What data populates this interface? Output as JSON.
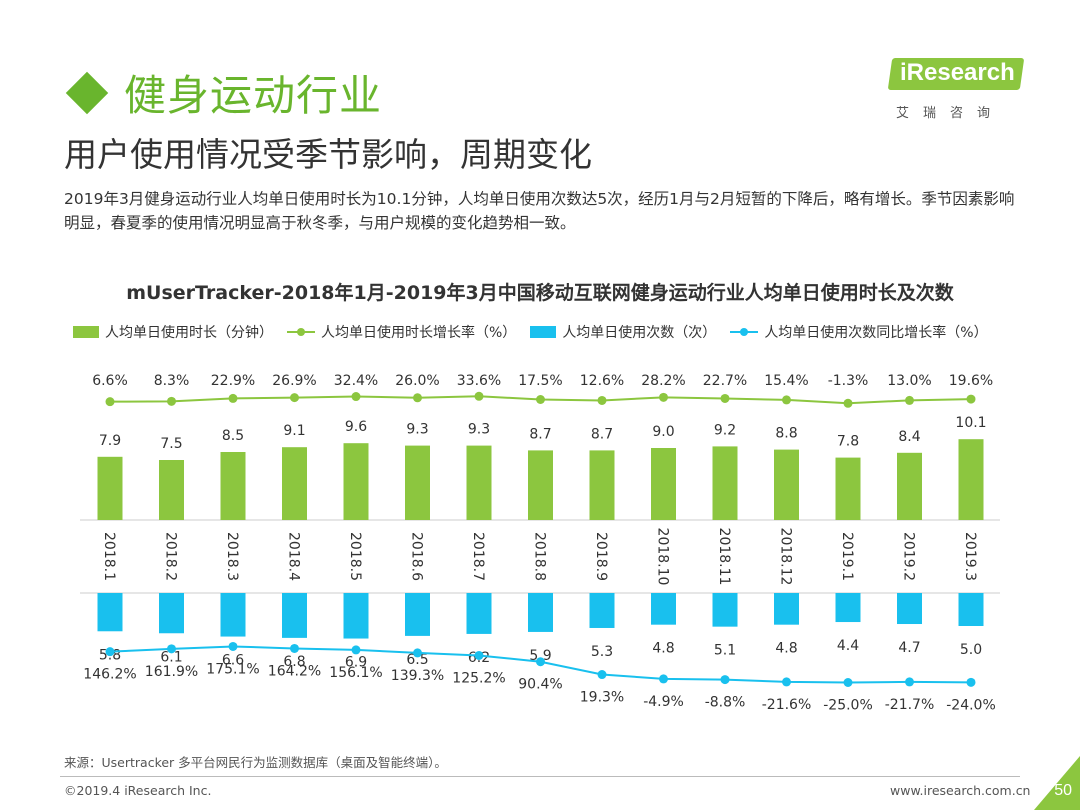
{
  "header": {
    "title": "健身运动行业",
    "subtitle": "用户使用情况受季节影响，周期变化",
    "description": "2019年3月健身运动行业人均单日使用时长为10.1分钟，人均单日使用次数达5次，经历1月与2月短暂的下降后，略有增长。季节因素影响明显，春夏季的使用情况明显高于秋冬季，与用户规模的变化趋势相一致。"
  },
  "logo": {
    "name": "iResearch",
    "sub": "艾瑞咨询"
  },
  "colors": {
    "green": "#8cc63f",
    "lineGreen": "#8cc63f",
    "blue": "#19c0ee",
    "lineBlue": "#19c0ee",
    "brand": "#69b52d"
  },
  "chart_data": {
    "type": "bar",
    "title": "mUserTracker-2018年1月-2019年3月中国移动互联网健身运动行业人均单日使用时长及次数",
    "categories": [
      "2018.1",
      "2018.2",
      "2018.3",
      "2018.4",
      "2018.5",
      "2018.6",
      "2018.7",
      "2018.8",
      "2018.9",
      "2018.10",
      "2018.11",
      "2018.12",
      "2019.1",
      "2019.2",
      "2019.3"
    ],
    "series": [
      {
        "name": "人均单日使用时长（分钟）",
        "kind": "bar",
        "values": [
          7.9,
          7.5,
          8.5,
          9.1,
          9.6,
          9.3,
          9.3,
          8.7,
          8.7,
          9.0,
          9.2,
          8.8,
          7.8,
          8.4,
          10.1
        ],
        "labels": [
          "7.9",
          "7.5",
          "8.5",
          "9.1",
          "9.6",
          "9.3",
          "9.3",
          "8.7",
          "8.7",
          "9.0",
          "9.2",
          "8.8",
          "7.8",
          "8.4",
          "10.1"
        ]
      },
      {
        "name": "人均单日使用时长增长率（%）",
        "kind": "line",
        "values": [
          6.6,
          8.3,
          22.9,
          26.9,
          32.4,
          26.0,
          33.6,
          17.5,
          12.6,
          28.2,
          22.7,
          15.4,
          -1.3,
          13.0,
          19.6
        ],
        "labels": [
          "6.6%",
          "8.3%",
          "22.9%",
          "26.9%",
          "32.4%",
          "26.0%",
          "33.6%",
          "17.5%",
          "12.6%",
          "28.2%",
          "22.7%",
          "15.4%",
          "-1.3%",
          "13.0%",
          "19.6%"
        ]
      },
      {
        "name": "人均单日使用次数（次）",
        "kind": "bar",
        "values": [
          5.8,
          6.1,
          6.6,
          6.8,
          6.9,
          6.5,
          6.2,
          5.9,
          5.3,
          4.8,
          5.1,
          4.8,
          4.4,
          4.7,
          5.0
        ],
        "labels": [
          "5.8",
          "6.1",
          "6.6",
          "6.8",
          "6.9",
          "6.5",
          "6.2",
          "5.9",
          "5.3",
          "4.8",
          "5.1",
          "4.8",
          "4.4",
          "4.7",
          "5.0"
        ]
      },
      {
        "name": "人均单日使用次数同比增长率（%）",
        "kind": "line",
        "values": [
          146.2,
          161.9,
          175.1,
          164.2,
          156.1,
          139.3,
          125.2,
          90.4,
          19.3,
          -4.9,
          -8.8,
          -21.6,
          -25.0,
          -21.7,
          -24.0
        ],
        "labels": [
          "146.2%",
          "161.9%",
          "175.1%",
          "164.2%",
          "156.1%",
          "139.3%",
          "125.2%",
          "90.4%",
          "19.3%",
          "-4.9%",
          "-8.8%",
          "-21.6%",
          "-25.0%",
          "-21.7%",
          "-24.0%"
        ]
      }
    ]
  },
  "footer": {
    "source": "来源：Usertracker 多平台网民行为监测数据库（桌面及智能终端）。",
    "copyright": "©2019.4 iResearch Inc.",
    "site": "www.iresearch.com.cn",
    "page": "50"
  }
}
